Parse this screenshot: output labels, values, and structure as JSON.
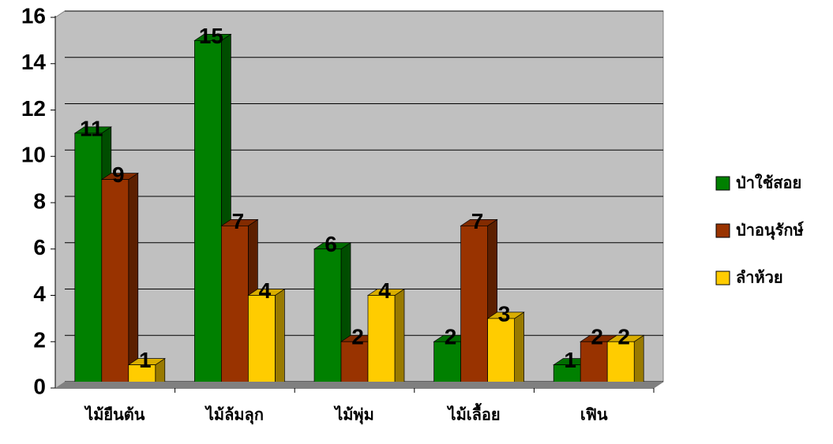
{
  "chart_data": {
    "type": "bar",
    "categories": [
      "ไม้ยืนต้น",
      "ไม้ล้มลุก",
      "ไม้พุ่ม",
      "ไม้เลื้อย",
      "เฟิน"
    ],
    "series": [
      {
        "name": "ป่าใช้สอย",
        "color": "#008000",
        "values": [
          11,
          15,
          6,
          2,
          1
        ]
      },
      {
        "name": "ป่าอนุรักษ์",
        "color": "#993300",
        "values": [
          9,
          7,
          2,
          7,
          2
        ]
      },
      {
        "name": "ลำห้วย",
        "color": "#ffcc00",
        "values": [
          1,
          4,
          4,
          3,
          2
        ]
      }
    ],
    "ylim": [
      0,
      16
    ],
    "yticks": [
      0,
      2,
      4,
      6,
      8,
      10,
      12,
      14,
      16
    ],
    "grid": true,
    "legend": "right"
  }
}
